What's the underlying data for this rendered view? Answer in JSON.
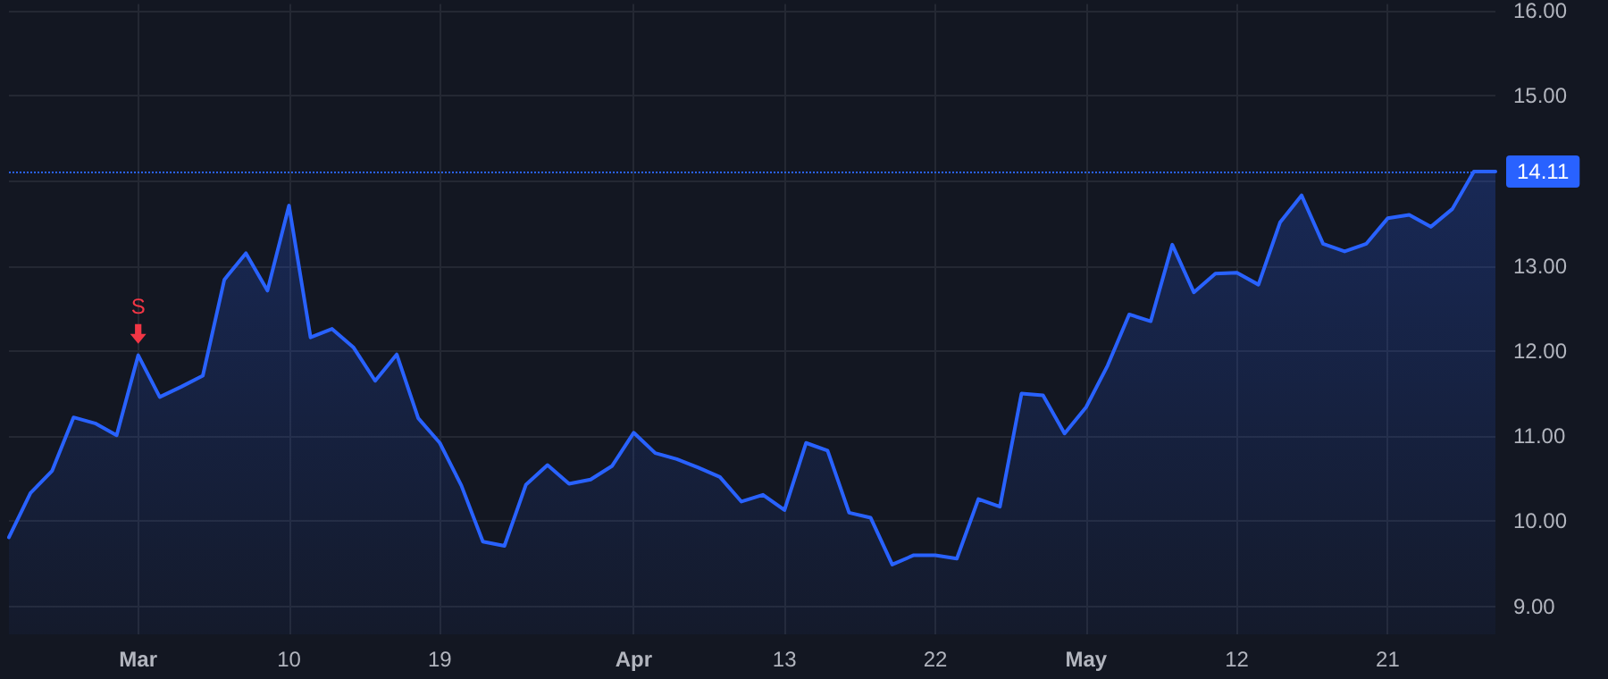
{
  "chart_data": {
    "type": "area",
    "categories": [
      null,
      null,
      null,
      null,
      null,
      null,
      "Mar",
      null,
      null,
      null,
      null,
      null,
      null,
      "10",
      null,
      null,
      null,
      null,
      null,
      null,
      "19",
      null,
      null,
      null,
      null,
      null,
      null,
      null,
      null,
      "Apr",
      null,
      null,
      null,
      null,
      null,
      null,
      "13",
      null,
      null,
      null,
      null,
      null,
      null,
      "22",
      null,
      null,
      null,
      null,
      null,
      null,
      "May",
      null,
      null,
      null,
      null,
      null,
      null,
      "12",
      null,
      null,
      null,
      null,
      null,
      null,
      "21",
      null,
      null,
      null,
      null,
      null
    ],
    "series": [
      {
        "color": "#2962ff",
        "values": [
          9.81,
          10.33,
          10.59,
          11.22,
          11.15,
          11.01,
          11.95,
          11.46,
          11.58,
          11.71,
          12.84,
          13.15,
          12.71,
          13.71,
          12.16,
          12.26,
          12.04,
          11.65,
          11.96,
          11.21,
          10.92,
          10.42,
          9.76,
          9.71,
          10.43,
          10.66,
          10.44,
          10.49,
          10.65,
          11.04,
          10.8,
          10.73,
          10.63,
          10.52,
          10.23,
          10.31,
          10.13,
          10.92,
          10.83,
          10.1,
          10.04,
          9.49,
          9.6,
          9.6,
          9.56,
          10.26,
          10.17,
          11.5,
          11.48,
          11.03,
          11.34,
          11.83,
          12.43,
          12.35,
          13.25,
          12.69,
          12.91,
          12.92,
          12.78,
          13.51,
          13.83,
          13.26,
          13.17,
          13.26,
          13.56,
          13.6,
          13.46,
          13.67,
          14.11,
          14.11
        ]
      }
    ],
    "ylim": [
      8.67,
      16.08
    ],
    "yticks": [
      {
        "value": 9,
        "label": "9.00"
      },
      {
        "value": 10,
        "label": "10.00"
      },
      {
        "value": 11,
        "label": "11.00"
      },
      {
        "value": 12,
        "label": "12.00"
      },
      {
        "value": 13,
        "label": "13.00"
      },
      {
        "value": 14,
        "label": null
      },
      {
        "value": 15,
        "label": "15.00"
      },
      {
        "value": 16,
        "label": "16.00"
      }
    ],
    "ref_lines": [
      {
        "axis": "y",
        "value": 14.11,
        "label": "14.11",
        "color": "#2962ff",
        "line_style": "dotted"
      }
    ],
    "annotations": [
      {
        "text": "S",
        "x": "Mar",
        "y": 11.95
      }
    ],
    "grid": true,
    "marker": "none",
    "line_style": "solid"
  }
}
